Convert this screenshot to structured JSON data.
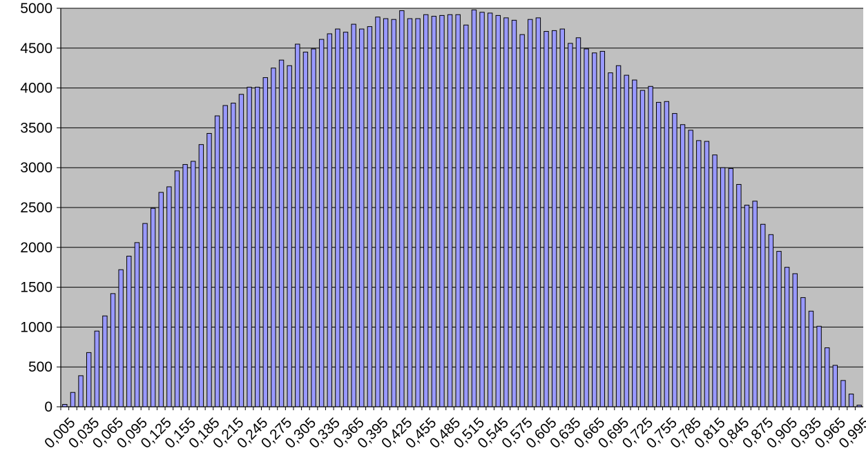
{
  "chart_data": {
    "type": "bar",
    "title": "",
    "xlabel": "",
    "ylabel": "",
    "ylim": [
      0,
      5000
    ],
    "y_ticks": [
      "0",
      "500",
      "1000",
      "1500",
      "2000",
      "2500",
      "3000",
      "3500",
      "4000",
      "4500",
      "5000"
    ],
    "grid": true,
    "legend": "none",
    "colors": {
      "plot_background": "#c0c0c0",
      "bar_fill": "#9999ff",
      "bar_edge": "#000000",
      "gridline": "#000000"
    },
    "categories": [
      "0,005",
      "0,015",
      "0,025",
      "0,035",
      "0,045",
      "0,055",
      "0,065",
      "0,075",
      "0,085",
      "0,095",
      "0,105",
      "0,115",
      "0,125",
      "0,135",
      "0,145",
      "0,155",
      "0,165",
      "0,175",
      "0,185",
      "0,195",
      "0,205",
      "0,215",
      "0,225",
      "0,235",
      "0,245",
      "0,255",
      "0,265",
      "0,275",
      "0,285",
      "0,295",
      "0,305",
      "0,315",
      "0,325",
      "0,335",
      "0,345",
      "0,355",
      "0,365",
      "0,375",
      "0,385",
      "0,395",
      "0,405",
      "0,415",
      "0,425",
      "0,435",
      "0,445",
      "0,455",
      "0,465",
      "0,475",
      "0,485",
      "0,495",
      "0,505",
      "0,515",
      "0,525",
      "0,535",
      "0,545",
      "0,555",
      "0,565",
      "0,575",
      "0,585",
      "0,595",
      "0,605",
      "0,615",
      "0,625",
      "0,635",
      "0,645",
      "0,655",
      "0,665",
      "0,675",
      "0,685",
      "0,695",
      "0,705",
      "0,715",
      "0,725",
      "0,735",
      "0,745",
      "0,755",
      "0,765",
      "0,775",
      "0,785",
      "0,795",
      "0,805",
      "0,815",
      "0,825",
      "0,835",
      "0,845",
      "0,855",
      "0,865",
      "0,875",
      "0,885",
      "0,895",
      "0,905",
      "0,915",
      "0,925",
      "0,935",
      "0,945",
      "0,955",
      "0,965",
      "0,975",
      "0,985",
      "0,995"
    ],
    "x_tick_labels": [
      "0,005",
      "0,035",
      "0,065",
      "0,095",
      "0,125",
      "0,155",
      "0,185",
      "0,215",
      "0,245",
      "0,275",
      "0,305",
      "0,335",
      "0,365",
      "0,395",
      "0,425",
      "0,455",
      "0,485",
      "0,515",
      "0,545",
      "0,575",
      "0,605",
      "0,635",
      "0,665",
      "0,695",
      "0,725",
      "0,755",
      "0,785",
      "0,815",
      "0,845",
      "0,875",
      "0,905",
      "0,935",
      "0,965",
      "0,995"
    ],
    "values": [
      30,
      180,
      390,
      680,
      950,
      1140,
      1420,
      1720,
      1890,
      2060,
      2300,
      2490,
      2690,
      2760,
      2960,
      3040,
      3080,
      3290,
      3430,
      3650,
      3780,
      3810,
      3920,
      4010,
      4010,
      4130,
      4250,
      4350,
      4280,
      4550,
      4450,
      4490,
      4610,
      4680,
      4740,
      4700,
      4800,
      4740,
      4770,
      4890,
      4870,
      4860,
      4970,
      4870,
      4870,
      4920,
      4900,
      4910,
      4920,
      4920,
      4790,
      4980,
      4950,
      4940,
      4910,
      4880,
      4850,
      4670,
      4860,
      4880,
      4710,
      4720,
      4740,
      4560,
      4630,
      4490,
      4440,
      4460,
      4190,
      4280,
      4160,
      4100,
      3970,
      4020,
      3820,
      3830,
      3680,
      3540,
      3470,
      3340,
      3330,
      3160,
      3000,
      2990,
      2790,
      2530,
      2580,
      2290,
      2160,
      1950,
      1750,
      1670,
      1370,
      1200,
      1010,
      740,
      520,
      330,
      160,
      20
    ]
  }
}
